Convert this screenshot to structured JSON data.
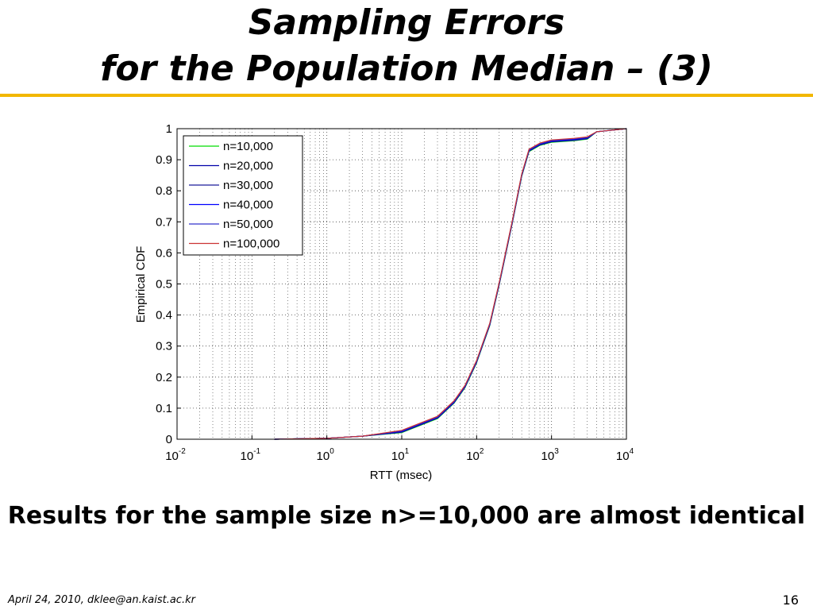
{
  "slide": {
    "title_line1": "Sampling Errors",
    "title_line2": "for the Population Median – (3)",
    "caption": "Results for the sample size n>=10,000 are almost identical",
    "footer_left": "April 24, 2010, dklee@an.kaist.ac.kr",
    "page_number": "16",
    "accent_color": "#f2b700"
  },
  "chart_data": {
    "type": "line",
    "xlabel": "RTT (msec)",
    "ylabel": "Empirical CDF",
    "xscale": "log",
    "xlim": [
      0.01,
      10000
    ],
    "ylim": [
      0,
      1
    ],
    "grid": true,
    "legend_position": "top-left",
    "x_ticks": [
      {
        "base": "10",
        "exp": "-2"
      },
      {
        "base": "10",
        "exp": "-1"
      },
      {
        "base": "10",
        "exp": "0"
      },
      {
        "base": "10",
        "exp": "1"
      },
      {
        "base": "10",
        "exp": "2"
      },
      {
        "base": "10",
        "exp": "3"
      },
      {
        "base": "10",
        "exp": "4"
      }
    ],
    "y_ticks": [
      "0",
      "0.1",
      "0.2",
      "0.3",
      "0.4",
      "0.5",
      "0.6",
      "0.7",
      "0.8",
      "0.9",
      "1"
    ],
    "series": [
      {
        "name": "n=10,000",
        "color": "#00dd00"
      },
      {
        "name": "n=20,000",
        "color": "#0000aa"
      },
      {
        "name": "n=30,000",
        "color": "#1a1a9a"
      },
      {
        "name": "n=40,000",
        "color": "#0000ff"
      },
      {
        "name": "n=50,000",
        "color": "#3333cc"
      },
      {
        "name": "n=100,000",
        "color": "#cc3333"
      }
    ],
    "cdf_points": [
      [
        0.2,
        0.0
      ],
      [
        1,
        0.003
      ],
      [
        3,
        0.01
      ],
      [
        10,
        0.025
      ],
      [
        30,
        0.07
      ],
      [
        50,
        0.12
      ],
      [
        70,
        0.17
      ],
      [
        100,
        0.25
      ],
      [
        150,
        0.37
      ],
      [
        200,
        0.5
      ],
      [
        300,
        0.7
      ],
      [
        400,
        0.85
      ],
      [
        500,
        0.93
      ],
      [
        700,
        0.95
      ],
      [
        1000,
        0.96
      ],
      [
        2000,
        0.965
      ],
      [
        3000,
        0.97
      ],
      [
        4000,
        0.99
      ],
      [
        10000,
        1.0
      ]
    ]
  }
}
